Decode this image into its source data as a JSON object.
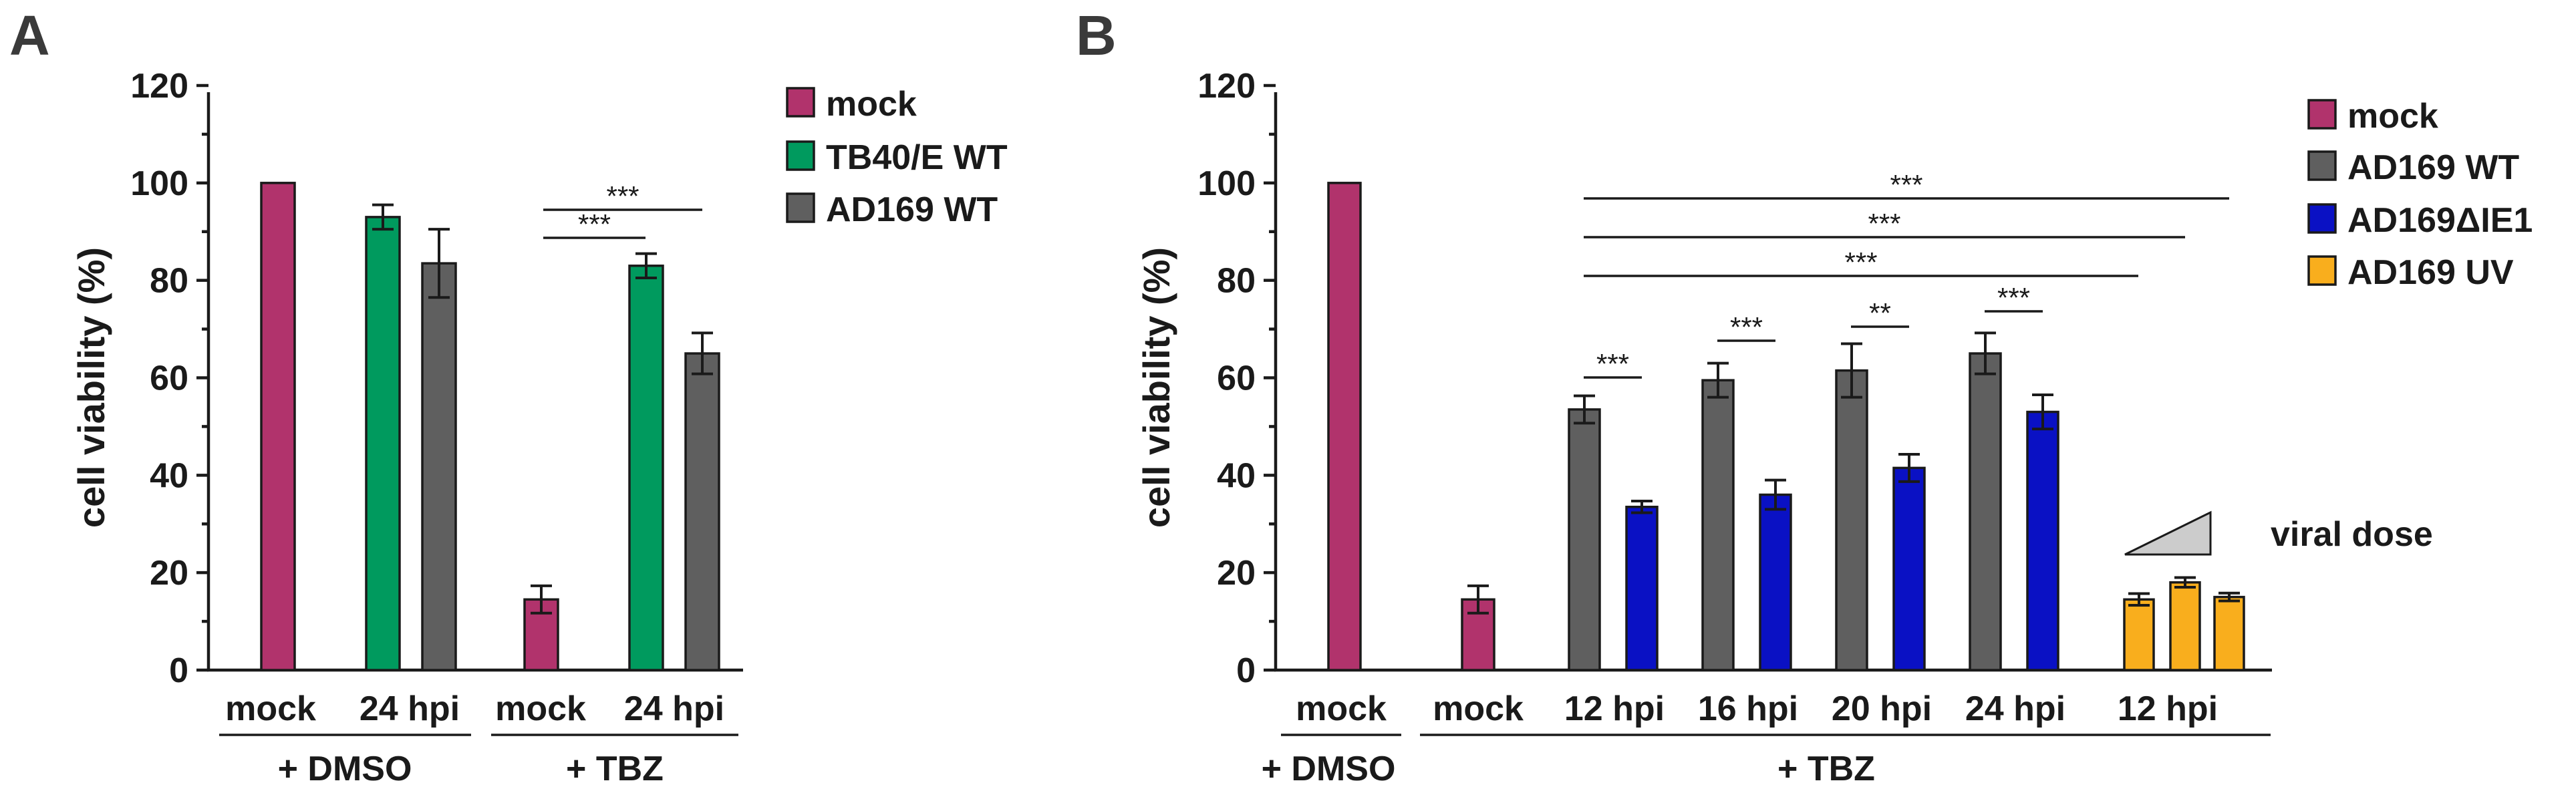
{
  "colors": {
    "mock": "#b1336c",
    "tb40": "#009a5e",
    "ad169wt": "#5f5f5f",
    "ad169delta": "#0a11c4",
    "ad169uv": "#f9ae1d",
    "dose_triangle": "#cccccc"
  },
  "chart_data": [
    {
      "type": "bar",
      "panel": "A",
      "ylabel": "cell viability (%)",
      "ylim": [
        0,
        120
      ],
      "yticks": [
        0,
        20,
        40,
        60,
        80,
        100,
        120
      ],
      "ytick_labels": [
        "0",
        "20",
        "40",
        "60",
        "80",
        "100",
        "120"
      ],
      "legend": [
        {
          "label": "mock",
          "color": "#b1336c"
        },
        {
          "label": "TB40/E WT",
          "color": "#009a5e"
        },
        {
          "label": "AD169 WT",
          "color": "#5f5f5f"
        }
      ],
      "bars": [
        {
          "group": "+ DMSO",
          "category": "mock",
          "series": "mock",
          "value": 100,
          "error": 0
        },
        {
          "group": "+ DMSO",
          "category": "24 hpi",
          "series": "TB40/E WT",
          "value": 93,
          "error": 2.5
        },
        {
          "group": "+ DMSO",
          "category": "24 hpi",
          "series": "AD169 WT",
          "value": 83.5,
          "error": 7
        },
        {
          "group": "+ TBZ",
          "category": "mock",
          "series": "mock",
          "value": 14.5,
          "error": 2.8
        },
        {
          "group": "+ TBZ",
          "category": "24 hpi",
          "series": "TB40/E WT",
          "value": 83,
          "error": 2.5
        },
        {
          "group": "+ TBZ",
          "category": "24 hpi",
          "series": "AD169 WT",
          "value": 65,
          "error": 4.2
        }
      ],
      "category_labels": [
        "mock",
        "24 hpi",
        "mock",
        "24 hpi"
      ],
      "group_labels": [
        "+ DMSO",
        "+ TBZ"
      ],
      "significance": [
        {
          "label": "***",
          "from": "+ TBZ mock",
          "to": "+ TBZ 24 hpi TB40/E WT"
        },
        {
          "label": "***",
          "from": "+ TBZ mock",
          "to": "+ TBZ 24 hpi AD169 WT"
        }
      ]
    },
    {
      "type": "bar",
      "panel": "B",
      "ylabel": "cell viability (%)",
      "ylim": [
        0,
        120
      ],
      "yticks": [
        0,
        20,
        40,
        60,
        80,
        100,
        120
      ],
      "ytick_labels": [
        "0",
        "20",
        "40",
        "60",
        "80",
        "100",
        "120"
      ],
      "legend": [
        {
          "label": "mock",
          "color": "#b1336c"
        },
        {
          "label": "AD169 WT",
          "color": "#5f5f5f"
        },
        {
          "label": "AD169ΔIE1",
          "color": "#0a11c4"
        },
        {
          "label": "AD169 UV",
          "color": "#f9ae1d"
        }
      ],
      "bars": [
        {
          "group": "+ DMSO",
          "category": "mock",
          "series": "mock",
          "value": 100,
          "error": 0
        },
        {
          "group": "+ TBZ",
          "category": "mock",
          "series": "mock",
          "value": 14.5,
          "error": 2.8
        },
        {
          "group": "+ TBZ",
          "category": "12 hpi",
          "series": "AD169 WT",
          "value": 53.5,
          "error": 2.8
        },
        {
          "group": "+ TBZ",
          "category": "12 hpi",
          "series": "AD169ΔIE1",
          "value": 33.5,
          "error": 1.2
        },
        {
          "group": "+ TBZ",
          "category": "16 hpi",
          "series": "AD169 WT",
          "value": 59.5,
          "error": 3.5
        },
        {
          "group": "+ TBZ",
          "category": "16 hpi",
          "series": "AD169ΔIE1",
          "value": 36,
          "error": 3
        },
        {
          "group": "+ TBZ",
          "category": "20 hpi",
          "series": "AD169 WT",
          "value": 61.5,
          "error": 5.5
        },
        {
          "group": "+ TBZ",
          "category": "20 hpi",
          "series": "AD169ΔIE1",
          "value": 41.5,
          "error": 2.8
        },
        {
          "group": "+ TBZ",
          "category": "24 hpi",
          "series": "AD169 WT",
          "value": 65,
          "error": 4.2
        },
        {
          "group": "+ TBZ",
          "category": "24 hpi",
          "series": "AD169ΔIE1",
          "value": 53,
          "error": 3.5
        },
        {
          "group": "+ TBZ",
          "category": "12 hpi",
          "series": "AD169 UV",
          "value": 14.5,
          "error": 1.2
        },
        {
          "group": "+ TBZ",
          "category": "12 hpi",
          "series": "AD169 UV",
          "value": 18,
          "error": 1
        },
        {
          "group": "+ TBZ",
          "category": "12 hpi",
          "series": "AD169 UV",
          "value": 15,
          "error": 0.8
        }
      ],
      "category_labels": [
        "mock",
        "mock",
        "12 hpi",
        "16 hpi",
        "20 hpi",
        "24 hpi",
        "12 hpi"
      ],
      "group_labels": [
        "+ DMSO",
        "+ TBZ"
      ],
      "annotation": "viral dose",
      "significance": [
        {
          "label": "***",
          "from": "12 hpi AD169 WT",
          "to": "12 hpi AD169ΔIE1"
        },
        {
          "label": "***",
          "from": "16 hpi AD169 WT",
          "to": "16 hpi AD169ΔIE1"
        },
        {
          "label": "**",
          "from": "20 hpi AD169 WT",
          "to": "20 hpi AD169ΔIE1"
        },
        {
          "label": "***",
          "from": "24 hpi AD169 WT",
          "to": "24 hpi AD169ΔIE1"
        },
        {
          "label": "***",
          "from": "12 hpi AD169 WT",
          "to": "AD169 UV dose 1"
        },
        {
          "label": "***",
          "from": "12 hpi AD169 WT",
          "to": "AD169 UV dose 2"
        },
        {
          "label": "***",
          "from": "12 hpi AD169 WT",
          "to": "AD169 UV dose 3"
        }
      ]
    }
  ]
}
